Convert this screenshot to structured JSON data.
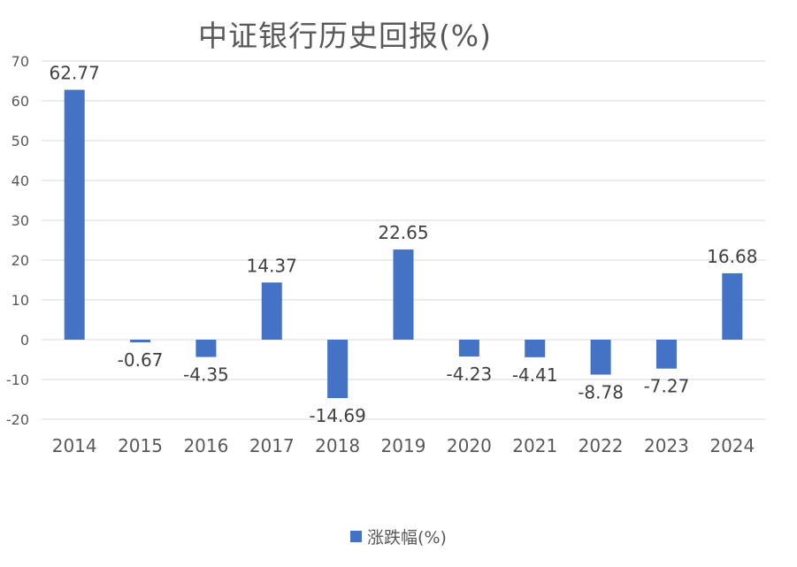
{
  "chart_data": {
    "type": "bar",
    "title": "中证银行历史回报(%)",
    "categories": [
      "2014",
      "2015",
      "2016",
      "2017",
      "2018",
      "2019",
      "2020",
      "2021",
      "2022",
      "2023",
      "2024"
    ],
    "series": [
      {
        "name": "涨跌幅(%)",
        "values": [
          62.77,
          -0.67,
          -4.35,
          14.37,
          -14.69,
          22.65,
          -4.23,
          -4.41,
          -8.78,
          -7.27,
          16.68
        ]
      }
    ],
    "data_labels": [
      "62.77",
      "-0.67",
      "-4.35",
      "14.37",
      "-14.69",
      "22.65",
      "-4.23",
      "-4.41",
      "-8.78",
      "-7.27",
      "16.68"
    ],
    "y_ticks": [
      70,
      60,
      50,
      40,
      30,
      20,
      10,
      0,
      -10,
      -20
    ],
    "ylim": [
      -20,
      70
    ],
    "grid": true,
    "legend_position": "bottom",
    "colors": {
      "bar": "#4472c4",
      "grid": "#d9d9d9",
      "text": "#595959"
    }
  }
}
